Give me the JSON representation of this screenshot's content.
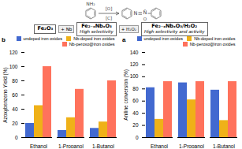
{
  "chart_data": [
    {
      "type": "bar",
      "title": "b",
      "categories": [
        "Ethanol",
        "1-Propanol",
        "1-Butanol"
      ],
      "series": [
        {
          "name": "undoped iron oxides",
          "values": [
            20,
            10,
            13
          ]
        },
        {
          "name": "Nb-doped iron oxides",
          "values": [
            45,
            28,
            22
          ]
        },
        {
          "name": "Nb-peroxo@iron oxides",
          "values": [
            100,
            68,
            80
          ]
        }
      ],
      "ylabel": "Azoxybenzene Yield (%)",
      "ylim": [
        0,
        120
      ],
      "yticks": [
        0,
        20,
        40,
        60,
        80,
        100,
        120
      ],
      "grid": false,
      "legend": "upper right"
    },
    {
      "type": "bar",
      "title": "a",
      "categories": [
        "Ethanol",
        "1-Propanol",
        "1-Butanol"
      ],
      "series": [
        {
          "name": "undoped iron oxides",
          "values": [
            82,
            90,
            78
          ]
        },
        {
          "name": "Nb-doped iron oxides",
          "values": [
            30,
            62,
            28
          ]
        },
        {
          "name": "Nb-peroxo@iron oxides",
          "values": [
            92,
            92,
            92
          ]
        }
      ],
      "ylabel": "Aniline conversion (%)",
      "ylim": [
        0,
        140
      ],
      "yticks": [
        0,
        20,
        40,
        60,
        80,
        100,
        120,
        140
      ],
      "grid": false,
      "legend": "upper right"
    }
  ],
  "annotations": [
    "NH₂",
    "[O]",
    "[C]",
    "N",
    "N̄",
    "O",
    "Fe₂O₃",
    "+ Nb",
    "Fe₂₋ₓNbₓO₃",
    "High selectivity",
    "+ H₂O₂",
    "Fe₂₋ₓNbₓO₃/H₂O₂",
    "High selectivity and activity"
  ]
}
